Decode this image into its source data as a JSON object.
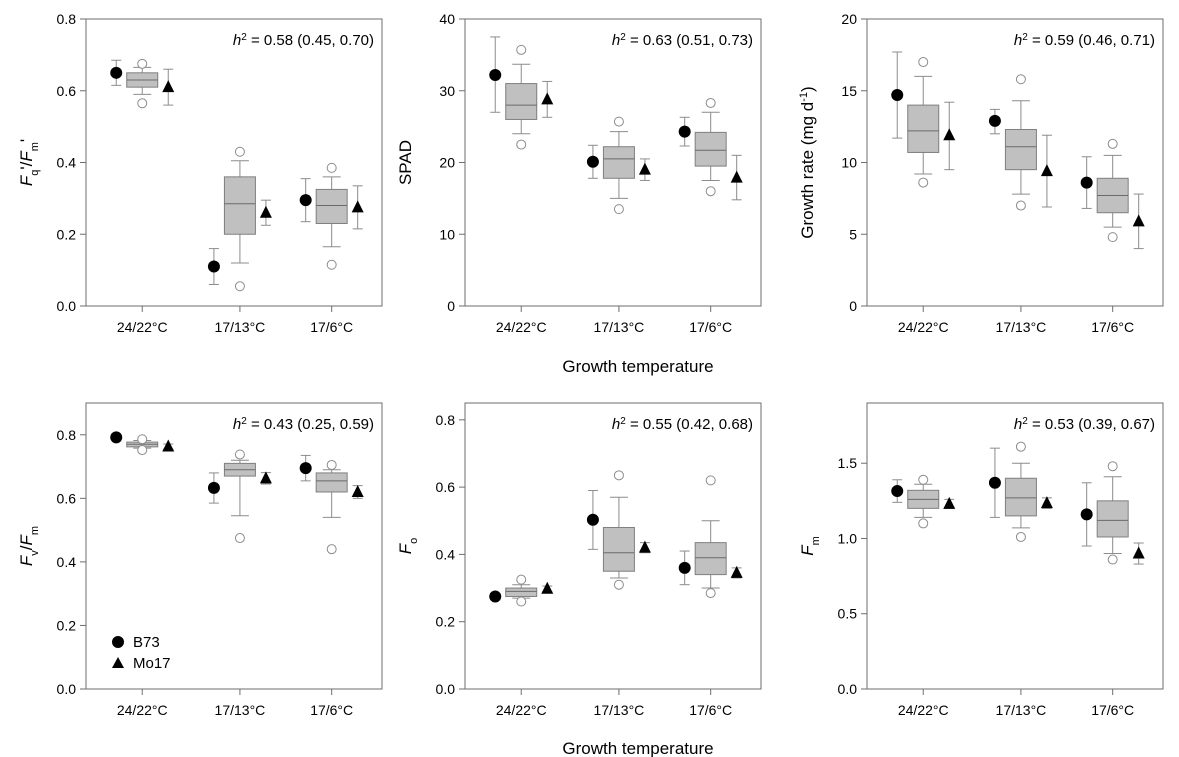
{
  "figure": {
    "common_xlabel_top": "Growth temperature",
    "common_xlabel_bottom": "Growth temperature",
    "legend": [
      {
        "label": "B73",
        "marker": "circle"
      },
      {
        "label": "Mo17",
        "marker": "triangle"
      }
    ],
    "colors": {
      "box_fill": "#c0c0c0",
      "box_stroke": "#7f7f7f",
      "whisker": "#8c8c8c",
      "outlier": "#8c8c8c",
      "marker": "#000000",
      "axis": "#6e6e6e"
    }
  },
  "chart_data": [
    {
      "type": "box",
      "ylabel": {
        "base": "F",
        "sub": "q",
        "mid": "'/",
        "base2": "F",
        "sub2": "m",
        "tail": "'"
      },
      "ylim": [
        0,
        0.8
      ],
      "yticks": [
        "0.0",
        "0.2",
        "0.4",
        "0.6",
        "0.8"
      ],
      "ytick_values": [
        0,
        0.2,
        0.4,
        0.6,
        0.8
      ],
      "categories": [
        "24/22°C",
        "17/13°C",
        "17/6°C"
      ],
      "heritability": {
        "prefix": "h",
        "sup": "2",
        "text": " = 0.58 (0.45, 0.70)"
      },
      "boxes": [
        {
          "q1": 0.61,
          "median": 0.63,
          "q3": 0.65,
          "whislo": 0.59,
          "whishi": 0.665,
          "outliers": [
            0.565,
            0.675
          ]
        },
        {
          "q1": 0.2,
          "median": 0.285,
          "q3": 0.36,
          "whislo": 0.12,
          "whishi": 0.405,
          "outliers": [
            0.055,
            0.43
          ]
        },
        {
          "q1": 0.23,
          "median": 0.28,
          "q3": 0.325,
          "whislo": 0.165,
          "whishi": 0.36,
          "outliers": [
            0.115,
            0.385
          ]
        }
      ],
      "B73": [
        {
          "value": 0.65,
          "lo": 0.615,
          "hi": 0.685
        },
        {
          "value": 0.11,
          "lo": 0.06,
          "hi": 0.16
        },
        {
          "value": 0.295,
          "lo": 0.235,
          "hi": 0.355
        }
      ],
      "Mo17": [
        {
          "value": 0.61,
          "lo": 0.56,
          "hi": 0.66
        },
        {
          "value": 0.26,
          "lo": 0.225,
          "hi": 0.295
        },
        {
          "value": 0.275,
          "lo": 0.215,
          "hi": 0.335
        }
      ]
    },
    {
      "type": "box",
      "ylabel": {
        "plain": "SPAD"
      },
      "ylim": [
        0,
        40
      ],
      "yticks": [
        "0",
        "10",
        "20",
        "30",
        "40"
      ],
      "ytick_values": [
        0,
        10,
        20,
        30,
        40
      ],
      "categories": [
        "24/22°C",
        "17/13°C",
        "17/6°C"
      ],
      "heritability": {
        "prefix": "h",
        "sup": "2",
        "text": " = 0.63 (0.51, 0.73)"
      },
      "boxes": [
        {
          "q1": 26.0,
          "median": 28.0,
          "q3": 31.0,
          "whislo": 24.0,
          "whishi": 33.7,
          "outliers": [
            22.5,
            35.7
          ]
        },
        {
          "q1": 17.8,
          "median": 20.5,
          "q3": 22.2,
          "whislo": 15.0,
          "whishi": 24.3,
          "outliers": [
            13.5,
            25.7
          ]
        },
        {
          "q1": 19.5,
          "median": 21.7,
          "q3": 24.2,
          "whislo": 17.5,
          "whishi": 27.0,
          "outliers": [
            16.0,
            28.3
          ]
        }
      ],
      "B73": [
        {
          "value": 32.2,
          "lo": 27.0,
          "hi": 37.5
        },
        {
          "value": 20.1,
          "lo": 17.8,
          "hi": 22.4
        },
        {
          "value": 24.3,
          "lo": 22.3,
          "hi": 26.3
        }
      ],
      "Mo17": [
        {
          "value": 28.8,
          "lo": 26.3,
          "hi": 31.3
        },
        {
          "value": 19.0,
          "lo": 17.5,
          "hi": 20.5
        },
        {
          "value": 17.9,
          "lo": 14.8,
          "hi": 21.0
        }
      ]
    },
    {
      "type": "box",
      "ylabel": {
        "plain": "Growth rate (mg d",
        "sup": "-1",
        "tail": ")"
      },
      "ylim": [
        0,
        20
      ],
      "yticks": [
        "0",
        "5",
        "10",
        "15",
        "20"
      ],
      "ytick_values": [
        0,
        5,
        10,
        15,
        20
      ],
      "categories": [
        "24/22°C",
        "17/13°C",
        "17/6°C"
      ],
      "heritability": {
        "prefix": "h",
        "sup": "2",
        "text": " = 0.59 (0.46, 0.71)"
      },
      "boxes": [
        {
          "q1": 10.7,
          "median": 12.2,
          "q3": 14.0,
          "whislo": 9.2,
          "whishi": 16.0,
          "outliers": [
            8.6,
            17.0
          ]
        },
        {
          "q1": 9.5,
          "median": 11.1,
          "q3": 12.3,
          "whislo": 7.8,
          "whishi": 14.3,
          "outliers": [
            7.0,
            15.8
          ]
        },
        {
          "q1": 6.5,
          "median": 7.7,
          "q3": 8.9,
          "whislo": 5.5,
          "whishi": 10.5,
          "outliers": [
            4.8,
            11.3
          ]
        }
      ],
      "B73": [
        {
          "value": 14.7,
          "lo": 11.7,
          "hi": 17.7
        },
        {
          "value": 12.9,
          "lo": 12.0,
          "hi": 13.7
        },
        {
          "value": 8.6,
          "lo": 6.8,
          "hi": 10.4
        }
      ],
      "Mo17": [
        {
          "value": 11.9,
          "lo": 9.5,
          "hi": 14.2
        },
        {
          "value": 9.4,
          "lo": 6.9,
          "hi": 11.9
        },
        {
          "value": 5.9,
          "lo": 4.0,
          "hi": 7.8
        }
      ]
    },
    {
      "type": "box",
      "ylabel": {
        "base": "F",
        "sub": "v",
        "mid": "/",
        "base2": "F",
        "sub2": "m"
      },
      "ylim": [
        0,
        0.9
      ],
      "yticks": [
        "0.0",
        "0.2",
        "0.4",
        "0.6",
        "0.8"
      ],
      "ytick_values": [
        0,
        0.2,
        0.4,
        0.6,
        0.8
      ],
      "categories": [
        "24/22°C",
        "17/13°C",
        "17/6°C"
      ],
      "heritability": {
        "prefix": "h",
        "sup": "2",
        "text": " = 0.43 (0.25, 0.59)"
      },
      "boxes": [
        {
          "q1": 0.762,
          "median": 0.77,
          "q3": 0.777,
          "whislo": 0.758,
          "whishi": 0.782,
          "outliers": [
            0.752,
            0.786
          ]
        },
        {
          "q1": 0.67,
          "median": 0.69,
          "q3": 0.71,
          "whislo": 0.545,
          "whishi": 0.72,
          "outliers": [
            0.475,
            0.738
          ]
        },
        {
          "q1": 0.62,
          "median": 0.655,
          "q3": 0.68,
          "whislo": 0.54,
          "whishi": 0.69,
          "outliers": [
            0.44,
            0.705
          ]
        }
      ],
      "B73": [
        {
          "value": 0.792,
          "lo": 0.785,
          "hi": 0.799
        },
        {
          "value": 0.633,
          "lo": 0.585,
          "hi": 0.68
        },
        {
          "value": 0.695,
          "lo": 0.655,
          "hi": 0.735
        }
      ],
      "Mo17": [
        {
          "value": 0.763,
          "lo": 0.755,
          "hi": 0.771
        },
        {
          "value": 0.663,
          "lo": 0.645,
          "hi": 0.681
        },
        {
          "value": 0.62,
          "lo": 0.6,
          "hi": 0.64
        }
      ]
    },
    {
      "type": "box",
      "ylabel": {
        "base": "F",
        "sub": "o"
      },
      "ylim": [
        0,
        0.85
      ],
      "yticks": [
        "0.0",
        "0.2",
        "0.4",
        "0.6",
        "0.8"
      ],
      "ytick_values": [
        0,
        0.2,
        0.4,
        0.6,
        0.8
      ],
      "categories": [
        "24/22°C",
        "17/13°C",
        "17/6°C"
      ],
      "heritability": {
        "prefix": "h",
        "sup": "2",
        "text": " = 0.55 (0.42, 0.68)"
      },
      "boxes": [
        {
          "q1": 0.275,
          "median": 0.29,
          "q3": 0.3,
          "whislo": 0.27,
          "whishi": 0.31,
          "outliers": [
            0.26,
            0.325
          ]
        },
        {
          "q1": 0.35,
          "median": 0.405,
          "q3": 0.48,
          "whislo": 0.33,
          "whishi": 0.57,
          "outliers": [
            0.31,
            0.635
          ]
        },
        {
          "q1": 0.34,
          "median": 0.39,
          "q3": 0.435,
          "whislo": 0.3,
          "whishi": 0.5,
          "outliers": [
            0.285,
            0.62
          ]
        }
      ],
      "B73": [
        {
          "value": 0.275,
          "lo": 0.27,
          "hi": 0.28
        },
        {
          "value": 0.503,
          "lo": 0.415,
          "hi": 0.59
        },
        {
          "value": 0.36,
          "lo": 0.31,
          "hi": 0.41
        }
      ],
      "Mo17": [
        {
          "value": 0.298,
          "lo": 0.29,
          "hi": 0.306
        },
        {
          "value": 0.42,
          "lo": 0.405,
          "hi": 0.435
        },
        {
          "value": 0.345,
          "lo": 0.33,
          "hi": 0.36
        }
      ]
    },
    {
      "type": "box",
      "ylabel": {
        "base": "F",
        "sub": "m"
      },
      "ylim": [
        0,
        1.9
      ],
      "yticks": [
        "0.0",
        "0.5",
        "1.0",
        "1.5"
      ],
      "ytick_values": [
        0,
        0.5,
        1.0,
        1.5
      ],
      "categories": [
        "24/22°C",
        "17/13°C",
        "17/6°C"
      ],
      "heritability": {
        "prefix": "h",
        "sup": "2",
        "text": " = 0.53 (0.39, 0.67)"
      },
      "boxes": [
        {
          "q1": 1.2,
          "median": 1.26,
          "q3": 1.32,
          "whislo": 1.14,
          "whishi": 1.36,
          "outliers": [
            1.1,
            1.39
          ]
        },
        {
          "q1": 1.15,
          "median": 1.27,
          "q3": 1.4,
          "whislo": 1.07,
          "whishi": 1.5,
          "outliers": [
            1.01,
            1.61
          ]
        },
        {
          "q1": 1.01,
          "median": 1.12,
          "q3": 1.25,
          "whislo": 0.9,
          "whishi": 1.41,
          "outliers": [
            0.86,
            1.48
          ]
        }
      ],
      "B73": [
        {
          "value": 1.315,
          "lo": 1.24,
          "hi": 1.39
        },
        {
          "value": 1.37,
          "lo": 1.14,
          "hi": 1.6
        },
        {
          "value": 1.16,
          "lo": 0.95,
          "hi": 1.37
        }
      ],
      "Mo17": [
        {
          "value": 1.23,
          "lo": 1.2,
          "hi": 1.26
        },
        {
          "value": 1.235,
          "lo": 1.2,
          "hi": 1.27
        },
        {
          "value": 0.9,
          "lo": 0.83,
          "hi": 0.97
        }
      ]
    }
  ]
}
